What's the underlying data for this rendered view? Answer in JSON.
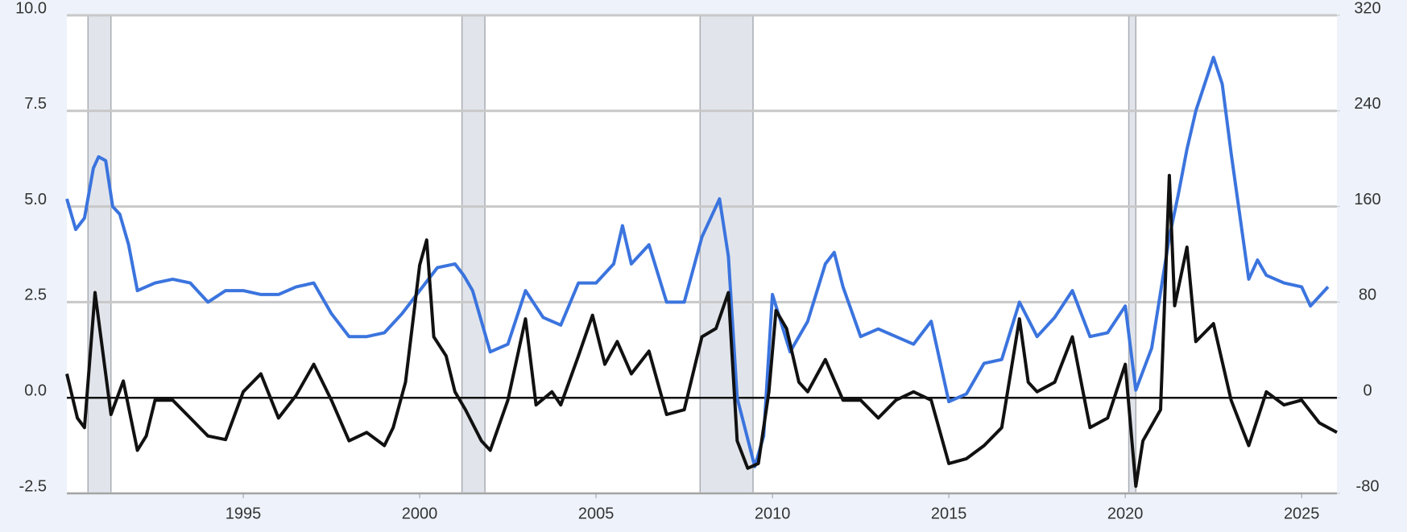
{
  "chart_data": {
    "type": "line",
    "xlim": [
      1990,
      2026
    ],
    "xticks": [
      1995,
      2000,
      2005,
      2010,
      2015,
      2020,
      2025
    ],
    "ylim": [
      -2.5,
      10
    ],
    "yticks": [
      -2.5,
      {
        "value": 0,
        "label": "0.0"
      },
      2.5,
      {
        "value": 5,
        "label": "5.0"
      },
      7.5,
      {
        "value": 10,
        "label": "10.0"
      }
    ],
    "y2lim": [
      -80,
      320
    ],
    "y2ticks": [
      -80,
      0,
      80,
      160,
      240,
      320
    ],
    "grid": true,
    "recessions": [
      [
        1990.6,
        1991.25
      ],
      [
        2001.2,
        2001.85
      ],
      [
        2007.95,
        2009.45
      ],
      [
        2020.1,
        2020.3
      ]
    ],
    "recession_color": "#e1e5eb",
    "series": [
      {
        "color": "#3b74de",
        "axis": "y",
        "x": [
          1990.0,
          1990.25,
          1990.5,
          1990.75,
          1990.9,
          1991.1,
          1991.3,
          1991.5,
          1991.75,
          1992.0,
          1992.5,
          1993.0,
          1993.5,
          1994.0,
          1994.5,
          1995.0,
          1995.5,
          1996.0,
          1996.5,
          1997.0,
          1997.5,
          1998.0,
          1998.5,
          1999.0,
          1999.5,
          2000.0,
          2000.5,
          2001.0,
          2001.25,
          2001.5,
          2002.0,
          2002.5,
          2003.0,
          2003.5,
          2004.0,
          2004.5,
          2005.0,
          2005.5,
          2005.75,
          2006.0,
          2006.5,
          2007.0,
          2007.5,
          2008.0,
          2008.5,
          2008.75,
          2009.0,
          2009.5,
          2009.75,
          2010.0,
          2010.5,
          2011.0,
          2011.5,
          2011.75,
          2012.0,
          2012.5,
          2013.0,
          2013.5,
          2014.0,
          2014.5,
          2015.0,
          2015.5,
          2016.0,
          2016.5,
          2017.0,
          2017.5,
          2018.0,
          2018.5,
          2019.0,
          2019.5,
          2020.0,
          2020.3,
          2020.75,
          2021.25,
          2021.5,
          2021.75,
          2022.0,
          2022.5,
          2022.75,
          2023.0,
          2023.5,
          2023.75,
          2024.0,
          2024.5,
          2025.0,
          2025.25,
          2025.75
        ],
        "values": [
          5.2,
          4.4,
          4.7,
          6.0,
          6.3,
          6.2,
          5.0,
          4.8,
          4.0,
          2.8,
          3.0,
          3.1,
          3.0,
          2.5,
          2.8,
          2.8,
          2.7,
          2.7,
          2.9,
          3.0,
          2.2,
          1.6,
          1.6,
          1.7,
          2.2,
          2.8,
          3.4,
          3.5,
          3.2,
          2.8,
          1.2,
          1.4,
          2.8,
          2.1,
          1.9,
          3.0,
          3.0,
          3.5,
          4.5,
          3.5,
          4.0,
          2.5,
          2.5,
          4.2,
          5.2,
          3.7,
          0.0,
          -1.8,
          -1.0,
          2.7,
          1.2,
          2.0,
          3.5,
          3.8,
          2.9,
          1.6,
          1.8,
          1.6,
          1.4,
          2.0,
          -0.1,
          0.1,
          0.9,
          1.0,
          2.5,
          1.6,
          2.1,
          2.8,
          1.6,
          1.7,
          2.4,
          0.2,
          1.3,
          4.2,
          5.3,
          6.5,
          7.5,
          8.9,
          8.2,
          6.4,
          3.1,
          3.6,
          3.2,
          3.0,
          2.9,
          2.4,
          2.9
        ]
      },
      {
        "color": "#111111",
        "axis": "y2",
        "x": [
          1990.0,
          1990.3,
          1990.5,
          1990.8,
          1991.1,
          1991.25,
          1991.6,
          1992.0,
          1992.25,
          1992.5,
          1993.0,
          1993.5,
          1994.0,
          1994.5,
          1995.0,
          1995.5,
          1996.0,
          1996.5,
          1997.0,
          1997.5,
          1998.0,
          1998.5,
          1999.0,
          1999.25,
          1999.6,
          2000.0,
          2000.2,
          2000.4,
          2000.75,
          2001.0,
          2001.3,
          2001.75,
          2002.0,
          2002.5,
          2003.0,
          2003.3,
          2003.75,
          2004.0,
          2004.5,
          2004.9,
          2005.25,
          2005.6,
          2006.0,
          2006.5,
          2007.0,
          2007.5,
          2008.0,
          2008.4,
          2008.75,
          2009.0,
          2009.3,
          2009.6,
          2009.9,
          2010.1,
          2010.4,
          2010.75,
          2011.0,
          2011.5,
          2012.0,
          2012.5,
          2013.0,
          2013.5,
          2014.0,
          2014.5,
          2015.0,
          2015.5,
          2016.0,
          2016.5,
          2017.0,
          2017.25,
          2017.5,
          2018.0,
          2018.5,
          2019.0,
          2019.5,
          2020.0,
          2020.3,
          2020.5,
          2021.0,
          2021.25,
          2021.4,
          2021.75,
          2022.0,
          2022.5,
          2023.0,
          2023.5,
          2024.0,
          2024.5,
          2025.0,
          2025.5,
          2026.0
        ],
        "values": [
          20,
          -17,
          -25,
          88,
          20,
          -14,
          14,
          -44,
          -32,
          -2,
          -2,
          -17,
          -32,
          -35,
          5,
          20,
          -17,
          2,
          28,
          -2,
          -36,
          -29,
          -40,
          -25,
          13,
          111,
          132,
          51,
          35,
          5,
          -10,
          -36,
          -44,
          -2,
          66,
          -6,
          5,
          -6,
          35,
          69,
          28,
          47,
          20,
          39,
          -14,
          -10,
          51,
          58,
          88,
          -36,
          -59,
          -55,
          5,
          73,
          58,
          13,
          5,
          32,
          -2,
          -2,
          -17,
          -2,
          5,
          -2,
          -55,
          -51,
          -40,
          -25,
          66,
          13,
          5,
          13,
          51,
          -25,
          -17,
          28,
          -74,
          -36,
          -10,
          186,
          77,
          126,
          47,
          62,
          -2,
          -40,
          5,
          -6,
          -2,
          -21,
          -29
        ]
      }
    ]
  }
}
